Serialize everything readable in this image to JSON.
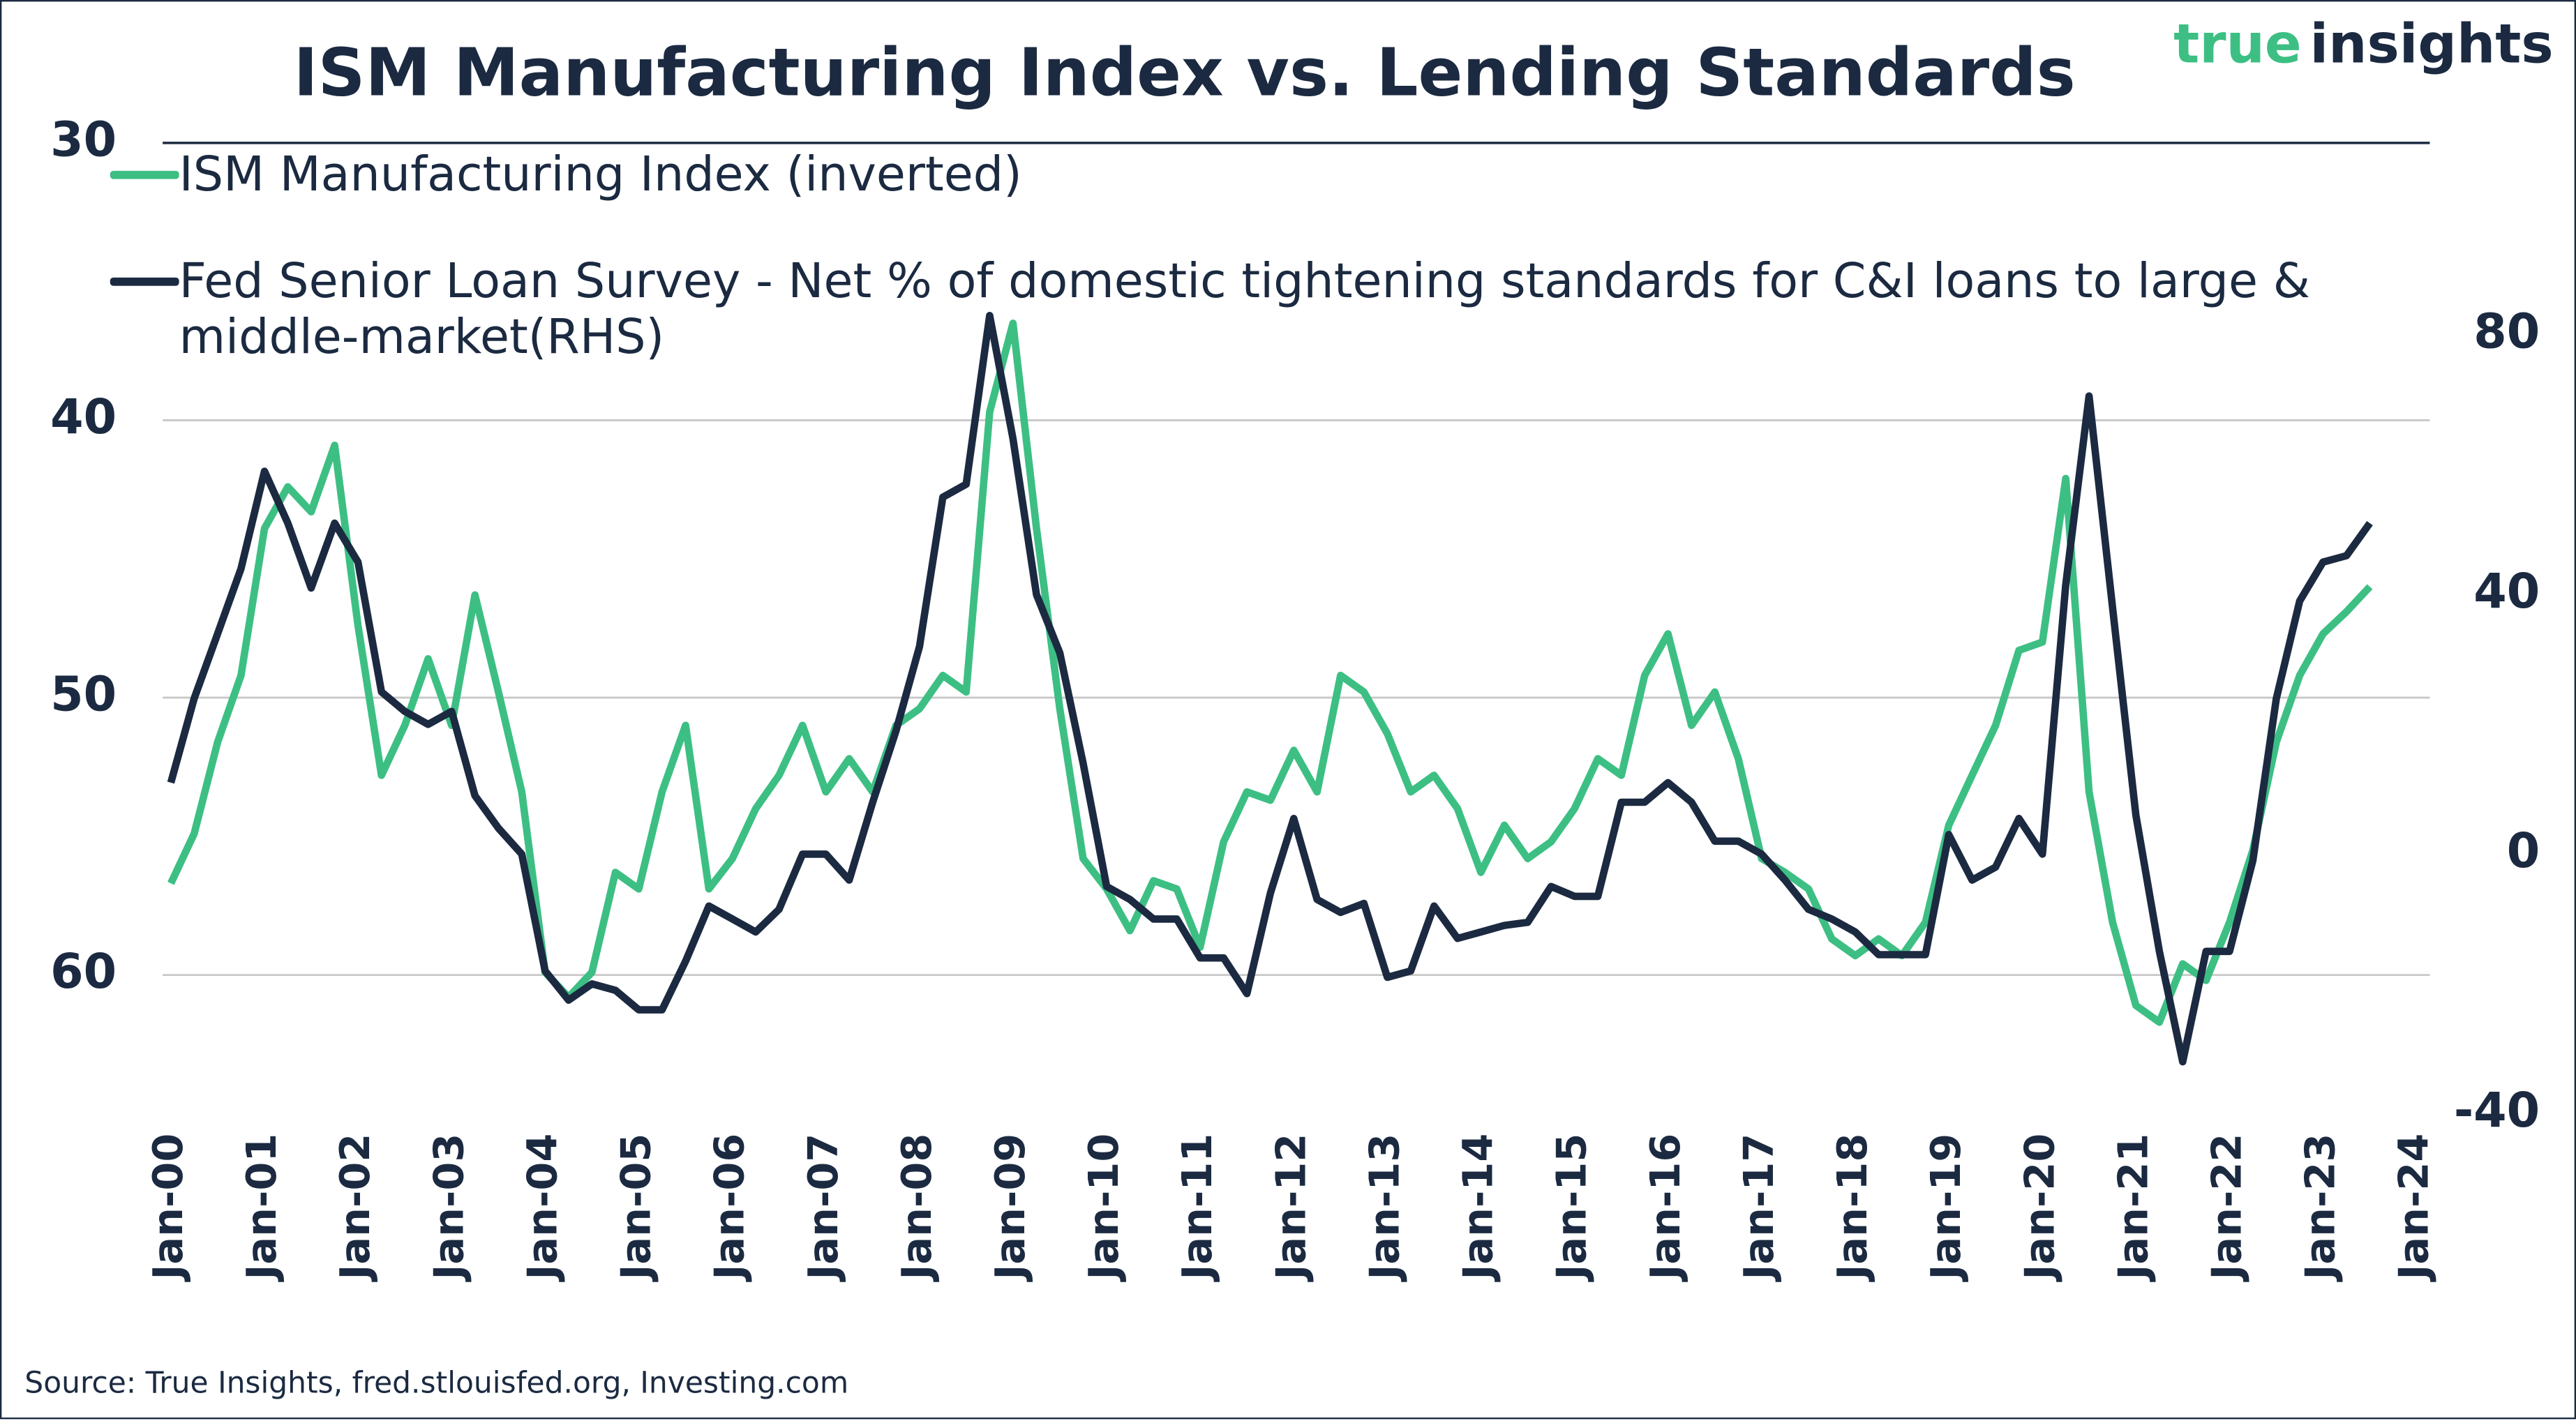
{
  "chart_data": {
    "type": "line",
    "title": "ISM Manufacturing Index vs. Lending Standards",
    "brand": [
      "true",
      "insights"
    ],
    "source": "Source: True Insights, fred.stlouisfed.org, Investing.com",
    "x": [
      "2000-01",
      "2000-04",
      "2000-07",
      "2000-10",
      "2001-01",
      "2001-04",
      "2001-07",
      "2001-10",
      "2002-01",
      "2002-04",
      "2002-07",
      "2002-10",
      "2003-01",
      "2003-04",
      "2003-07",
      "2003-10",
      "2004-01",
      "2004-04",
      "2004-07",
      "2004-10",
      "2005-01",
      "2005-04",
      "2005-07",
      "2005-10",
      "2006-01",
      "2006-04",
      "2006-07",
      "2006-10",
      "2007-01",
      "2007-04",
      "2007-07",
      "2007-10",
      "2008-01",
      "2008-04",
      "2008-07",
      "2008-10",
      "2009-01",
      "2009-04",
      "2009-07",
      "2009-10",
      "2010-01",
      "2010-04",
      "2010-07",
      "2010-10",
      "2011-01",
      "2011-04",
      "2011-07",
      "2011-10",
      "2012-01",
      "2012-04",
      "2012-07",
      "2012-10",
      "2013-01",
      "2013-04",
      "2013-07",
      "2013-10",
      "2014-01",
      "2014-04",
      "2014-07",
      "2014-10",
      "2015-01",
      "2015-04",
      "2015-07",
      "2015-10",
      "2016-01",
      "2016-04",
      "2016-07",
      "2016-10",
      "2017-01",
      "2017-04",
      "2017-07",
      "2017-10",
      "2018-01",
      "2018-04",
      "2018-07",
      "2018-10",
      "2019-01",
      "2019-04",
      "2019-07",
      "2019-10",
      "2020-01",
      "2020-04",
      "2020-07",
      "2020-10",
      "2021-01",
      "2021-04",
      "2021-07",
      "2021-10",
      "2022-01",
      "2022-04",
      "2022-07",
      "2022-10",
      "2023-01",
      "2023-04",
      "2023-07"
    ],
    "series": [
      {
        "name": "ISM Manufacturing Index (inverted)",
        "color": "#3dbf84",
        "values": [
          56.7,
          54.9,
          51.6,
          49.2,
          43.9,
          42.4,
          43.3,
          40.9,
          47.4,
          52.8,
          51,
          48.6,
          51,
          46.3,
          49.8,
          53.4,
          59.9,
          60.8,
          59.9,
          56.3,
          56.9,
          53.4,
          51,
          56.9,
          55.8,
          54,
          52.8,
          51,
          53.4,
          52.2,
          53.4,
          51,
          50.4,
          49.2,
          49.8,
          39.7,
          36.5,
          43.9,
          50.4,
          55.8,
          56.9,
          58.4,
          56.6,
          56.9,
          59,
          55.2,
          53.4,
          53.7,
          51.9,
          53.4,
          49.2,
          49.8,
          51.3,
          53.4,
          52.8,
          54,
          56.3,
          54.6,
          55.8,
          55.2,
          54,
          52.2,
          52.8,
          49.2,
          47.7,
          51,
          49.8,
          52.2,
          55.8,
          56.3,
          56.9,
          58.7,
          59.3,
          58.7,
          59.3,
          58.1,
          54.6,
          52.8,
          51,
          48.3,
          48,
          42.1,
          53.4,
          58.1,
          61.1,
          61.7,
          59.6,
          60.2,
          58.1,
          55.5,
          51.6,
          49.2,
          47.7,
          46.9,
          46
        ]
      },
      {
        "name": "Fed Senior Loan Survey - Net % of domestic tightening standards for C&I loans to large & middle-market(RHS)",
        "color": "#1b2a41",
        "axis": "y2",
        "values": [
          11,
          24,
          34,
          44,
          59,
          51,
          41,
          51,
          45,
          25,
          22,
          20,
          22,
          9,
          4,
          0,
          -18,
          -22.5,
          -20,
          -21,
          -24,
          -24,
          -16.5,
          -8,
          -10,
          -12,
          -8.5,
          0,
          0,
          -4,
          8,
          19,
          32,
          55,
          57,
          83,
          64,
          40,
          31,
          14,
          -5,
          -7,
          -10,
          -10,
          -16,
          -16,
          -21.5,
          -6,
          5.5,
          -7,
          -9,
          -7.6,
          -19,
          -18,
          -8,
          -13,
          -12,
          -11,
          -10.5,
          -5,
          -6.5,
          -6.5,
          8,
          8,
          11,
          8,
          2,
          2,
          0,
          -4,
          -8.5,
          -10,
          -12,
          -15.5,
          -15.5,
          -15.5,
          3,
          -4,
          -2,
          5.5,
          0,
          41.5,
          70.6,
          38,
          6,
          -15,
          -32,
          -15,
          -15,
          -1,
          24,
          39,
          45,
          46,
          51
        ]
      }
    ],
    "xlim": [
      "2000-01",
      "2024-01"
    ],
    "xticks": [
      {
        "value": "2000-01",
        "label": "Jan-00"
      },
      {
        "value": "2001-01",
        "label": "Jan-01"
      },
      {
        "value": "2002-01",
        "label": "Jan-02"
      },
      {
        "value": "2003-01",
        "label": "Jan-03"
      },
      {
        "value": "2004-01",
        "label": "Jan-04"
      },
      {
        "value": "2005-01",
        "label": "Jan-05"
      },
      {
        "value": "2006-01",
        "label": "Jan-06"
      },
      {
        "value": "2007-01",
        "label": "Jan-07"
      },
      {
        "value": "2008-01",
        "label": "Jan-08"
      },
      {
        "value": "2009-01",
        "label": "Jan-09"
      },
      {
        "value": "2010-01",
        "label": "Jan-10"
      },
      {
        "value": "2011-01",
        "label": "Jan-11"
      },
      {
        "value": "2012-01",
        "label": "Jan-12"
      },
      {
        "value": "2013-01",
        "label": "Jan-13"
      },
      {
        "value": "2014-01",
        "label": "Jan-14"
      },
      {
        "value": "2015-01",
        "label": "Jan-15"
      },
      {
        "value": "2016-01",
        "label": "Jan-16"
      },
      {
        "value": "2017-01",
        "label": "Jan-17"
      },
      {
        "value": "2018-01",
        "label": "Jan-18"
      },
      {
        "value": "2019-01",
        "label": "Jan-19"
      },
      {
        "value": "2020-01",
        "label": "Jan-20"
      },
      {
        "value": "2021-01",
        "label": "Jan-21"
      },
      {
        "value": "2022-01",
        "label": "Jan-22"
      },
      {
        "value": "2023-01",
        "label": "Jan-23"
      },
      {
        "value": "2024-01",
        "label": "Jan-24"
      }
    ],
    "ylim": [
      30,
      65
    ],
    "y_inverted": true,
    "yticks": [
      30,
      40,
      50,
      60
    ],
    "y2lim": [
      -40,
      109.6
    ],
    "y2ticks": [
      -40,
      0,
      40,
      80
    ],
    "grid": true,
    "legend": "top-left"
  }
}
